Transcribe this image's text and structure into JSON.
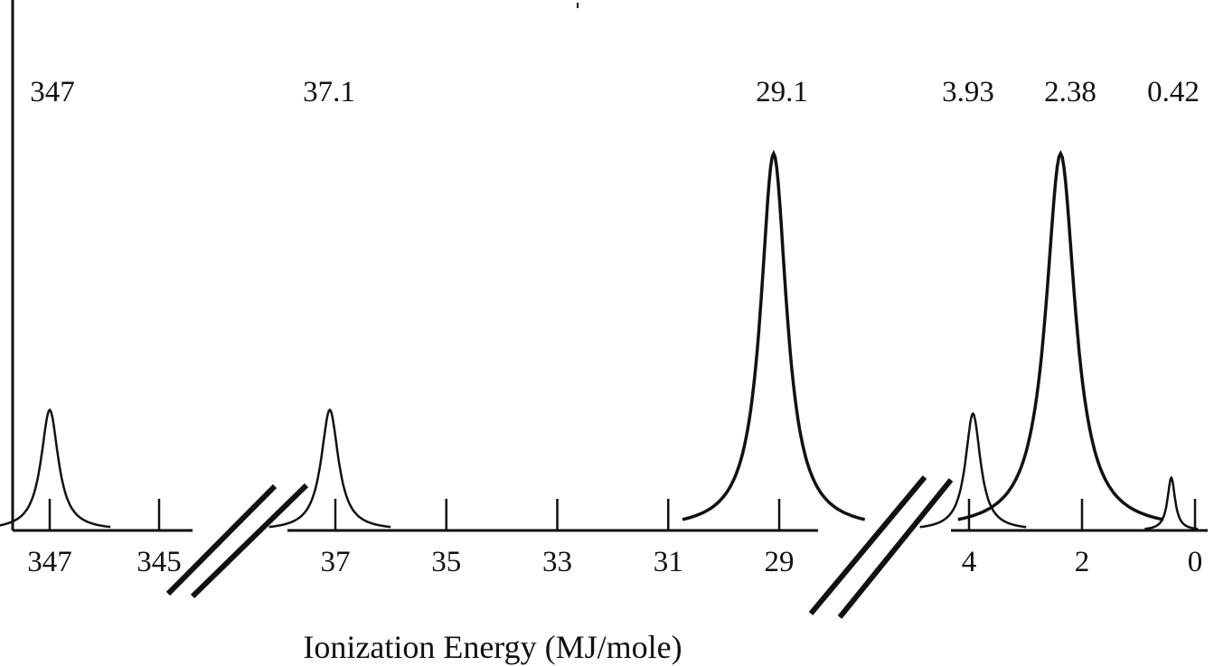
{
  "chart_data": {
    "type": "line",
    "title": "",
    "xlabel": "Ionization Energy (MJ/mole)",
    "ylabel": "",
    "x_direction": "decreasing",
    "broken_axis": true,
    "segments": [
      {
        "xlim": [
          347.7,
          344.5
        ],
        "ticks": [
          347,
          345
        ]
      },
      {
        "xlim": [
          37.8,
          28.3
        ],
        "ticks": [
          37,
          35,
          33,
          31,
          29
        ]
      },
      {
        "xlim": [
          4.2,
          -0.05
        ],
        "ticks": [
          4,
          2,
          0
        ]
      }
    ],
    "peaks": [
      {
        "label": "347",
        "position": 347.0,
        "relative_height": 0.32
      },
      {
        "label": "37.1",
        "position": 37.1,
        "relative_height": 0.32
      },
      {
        "label": "29.1",
        "position": 29.1,
        "relative_height": 1.0
      },
      {
        "label": "3.93",
        "position": 3.93,
        "relative_height": 0.31
      },
      {
        "label": "2.38",
        "position": 2.38,
        "relative_height": 1.0
      },
      {
        "label": "0.42",
        "position": 0.42,
        "relative_height": 0.14
      }
    ],
    "grid": false,
    "legend": "none"
  }
}
